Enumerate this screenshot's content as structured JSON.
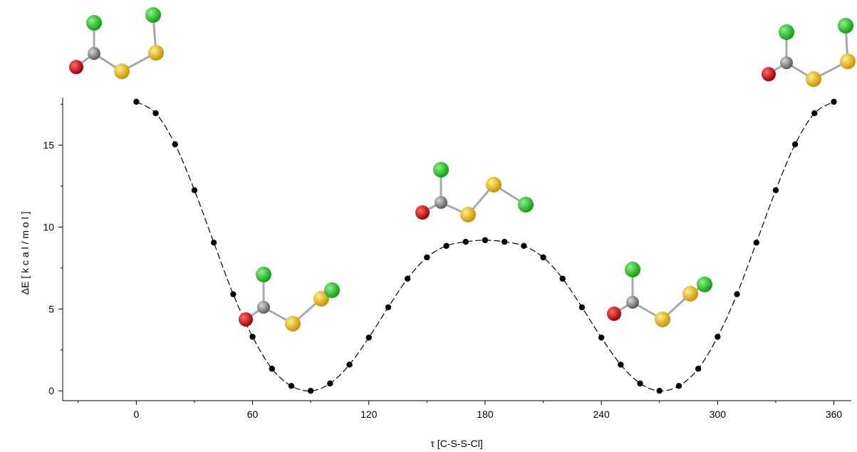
{
  "chart_data": {
    "type": "scatter",
    "title": "",
    "xlabel": "τ [C-S-S-Cl]",
    "ylabel": "ΔE   [ k c a l / m o l ]",
    "xlim": [
      -38,
      369
    ],
    "ylim": [
      -0.6,
      17.9
    ],
    "xticks": [
      0,
      60,
      120,
      180,
      240,
      300,
      360
    ],
    "xtick_labels": [
      "0",
      "60",
      "120",
      "180",
      "240",
      "300",
      "360"
    ],
    "yticks": [
      0,
      5,
      10,
      15
    ],
    "ytick_labels": [
      "0",
      "5",
      "10",
      "15"
    ],
    "grid": false,
    "legend": false,
    "colors": {
      "points": "#000000",
      "fit_line": "#000000",
      "carbon": "#808080",
      "chlorine": "#22cc22",
      "oxygen": "#cc1111",
      "sulfur": "#e8bb22",
      "bond": "#a8a8a8"
    },
    "series": [
      {
        "style": "markers",
        "x": [
          0,
          10,
          20,
          30,
          40,
          50,
          60,
          70,
          80,
          90,
          100,
          110,
          120,
          130,
          140,
          150,
          160,
          170,
          180,
          190,
          200,
          210,
          220,
          230,
          240,
          250,
          260,
          270,
          280,
          290,
          300,
          310,
          320,
          330,
          340,
          350,
          360
        ],
        "y": [
          17.65,
          16.95,
          15.05,
          12.25,
          9.05,
          5.9,
          3.3,
          1.35,
          0.3,
          0.0,
          0.45,
          1.6,
          3.25,
          5.1,
          6.85,
          8.15,
          8.85,
          9.1,
          9.2,
          9.1,
          8.85,
          8.15,
          6.85,
          5.1,
          3.25,
          1.6,
          0.45,
          0.0,
          0.3,
          1.35,
          3.3,
          5.9,
          9.05,
          12.25,
          15.05,
          16.95,
          17.65
        ]
      },
      {
        "style": "dashed-fit",
        "x": [
          0,
          10,
          20,
          30,
          40,
          50,
          60,
          70,
          80,
          90,
          100,
          110,
          120,
          130,
          140,
          150,
          160,
          170,
          180,
          190,
          200,
          210,
          220,
          230,
          240,
          250,
          260,
          270,
          280,
          290,
          300,
          310,
          320,
          330,
          340,
          350,
          360
        ],
        "y": [
          17.65,
          16.95,
          15.05,
          12.25,
          9.05,
          5.9,
          3.3,
          1.35,
          0.3,
          0.0,
          0.45,
          1.6,
          3.25,
          5.1,
          6.85,
          8.15,
          8.85,
          9.1,
          9.2,
          9.1,
          8.85,
          8.15,
          6.85,
          5.1,
          3.25,
          1.6,
          0.45,
          0.0,
          0.3,
          1.35,
          3.3,
          5.9,
          9.05,
          12.25,
          15.05,
          16.95,
          17.65
        ]
      }
    ]
  }
}
